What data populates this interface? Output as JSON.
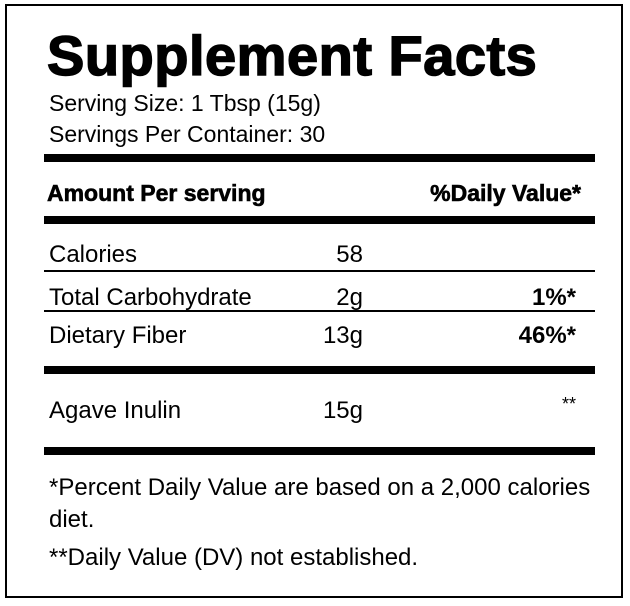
{
  "header": {
    "title": "Supplement Facts",
    "serving_size": "Serving Size: 1 Tbsp (15g)",
    "servings_per_container": "Servings Per Container: 30"
  },
  "table": {
    "columns": [
      "Amount Per serving",
      "%Daily Value*"
    ],
    "rows": [
      {
        "name": "Calories",
        "amount": "58"
      },
      {
        "name": "Total Carbohydrate",
        "amount": "2g",
        "daily_value": "1%*"
      },
      {
        "name": "Dietary Fiber",
        "amount": "13g",
        "daily_value": "46%*"
      },
      {
        "name": "Agave Inulin",
        "amount": "15g",
        "daily_value": "**"
      }
    ]
  },
  "footnotes": [
    "*Percent Daily Value are based on a 2,000 calories diet.",
    "**Daily Value (DV) not established."
  ]
}
